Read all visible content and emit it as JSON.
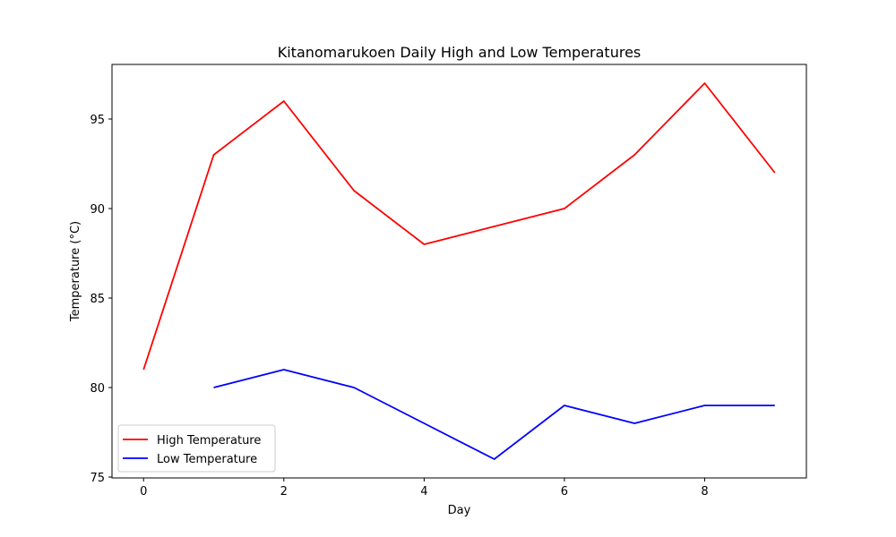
{
  "chart_data": {
    "type": "line",
    "title": "Kitanomarukoen Daily High and Low Temperatures",
    "xlabel": "Day",
    "ylabel": "Temperature (°C)",
    "xlim": [
      -0.45,
      9.45
    ],
    "ylim": [
      74.95,
      98.05
    ],
    "xticks": [
      0,
      2,
      4,
      6,
      8
    ],
    "yticks": [
      75,
      80,
      85,
      90,
      95
    ],
    "grid": false,
    "legend_position": "lower-left",
    "series": [
      {
        "name": "High Temperature",
        "color": "#ff0000",
        "x": [
          0,
          1,
          2,
          3,
          4,
          5,
          6,
          7,
          8,
          9
        ],
        "values": [
          81,
          93,
          96,
          91,
          88,
          89,
          90,
          93,
          97,
          92
        ]
      },
      {
        "name": "Low Temperature",
        "color": "#0000ff",
        "x": [
          1,
          2,
          3,
          4,
          5,
          6,
          7,
          8,
          9
        ],
        "values": [
          80,
          81,
          80,
          78,
          76,
          79,
          78,
          79,
          79
        ]
      }
    ]
  }
}
